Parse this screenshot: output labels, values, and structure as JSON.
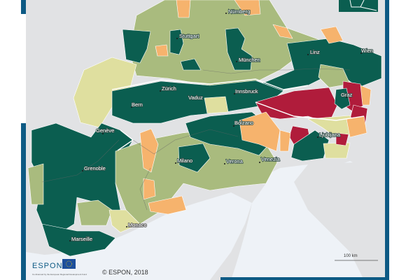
{
  "colors": {
    "frame": "#0d5a84",
    "sea": "#eef2f7",
    "land": "#e1e2e4",
    "class_dark_green": "#0b5e50",
    "class_light_green": "#a9bb7e",
    "class_pale_yellow": "#dfdf9f",
    "class_orange": "#f6b36d",
    "class_red": "#b01c3b"
  },
  "cities": [
    {
      "name": "Nürnberg"
    },
    {
      "name": "Stuttgart"
    },
    {
      "name": "München"
    },
    {
      "name": "Linz"
    },
    {
      "name": "Wien"
    },
    {
      "name": "Zürich"
    },
    {
      "name": "Vaduz"
    },
    {
      "name": "Bern"
    },
    {
      "name": "Innsbruck"
    },
    {
      "name": "Graz"
    },
    {
      "name": "Genève"
    },
    {
      "name": "Bolzano"
    },
    {
      "name": "Ljubljana"
    },
    {
      "name": "Grenoble"
    },
    {
      "name": "Milano"
    },
    {
      "name": "Verona"
    },
    {
      "name": "Venezia"
    },
    {
      "name": "Monaco"
    },
    {
      "name": "Marseille"
    }
  ],
  "scale_bar": {
    "label": "100 km"
  },
  "footer": {
    "logo": "ESPON",
    "cofund": "Co-financed by the European Regional Development Fund",
    "eu_label": "EUROPEAN UNION",
    "copyright": "© ESPON, 2018"
  }
}
